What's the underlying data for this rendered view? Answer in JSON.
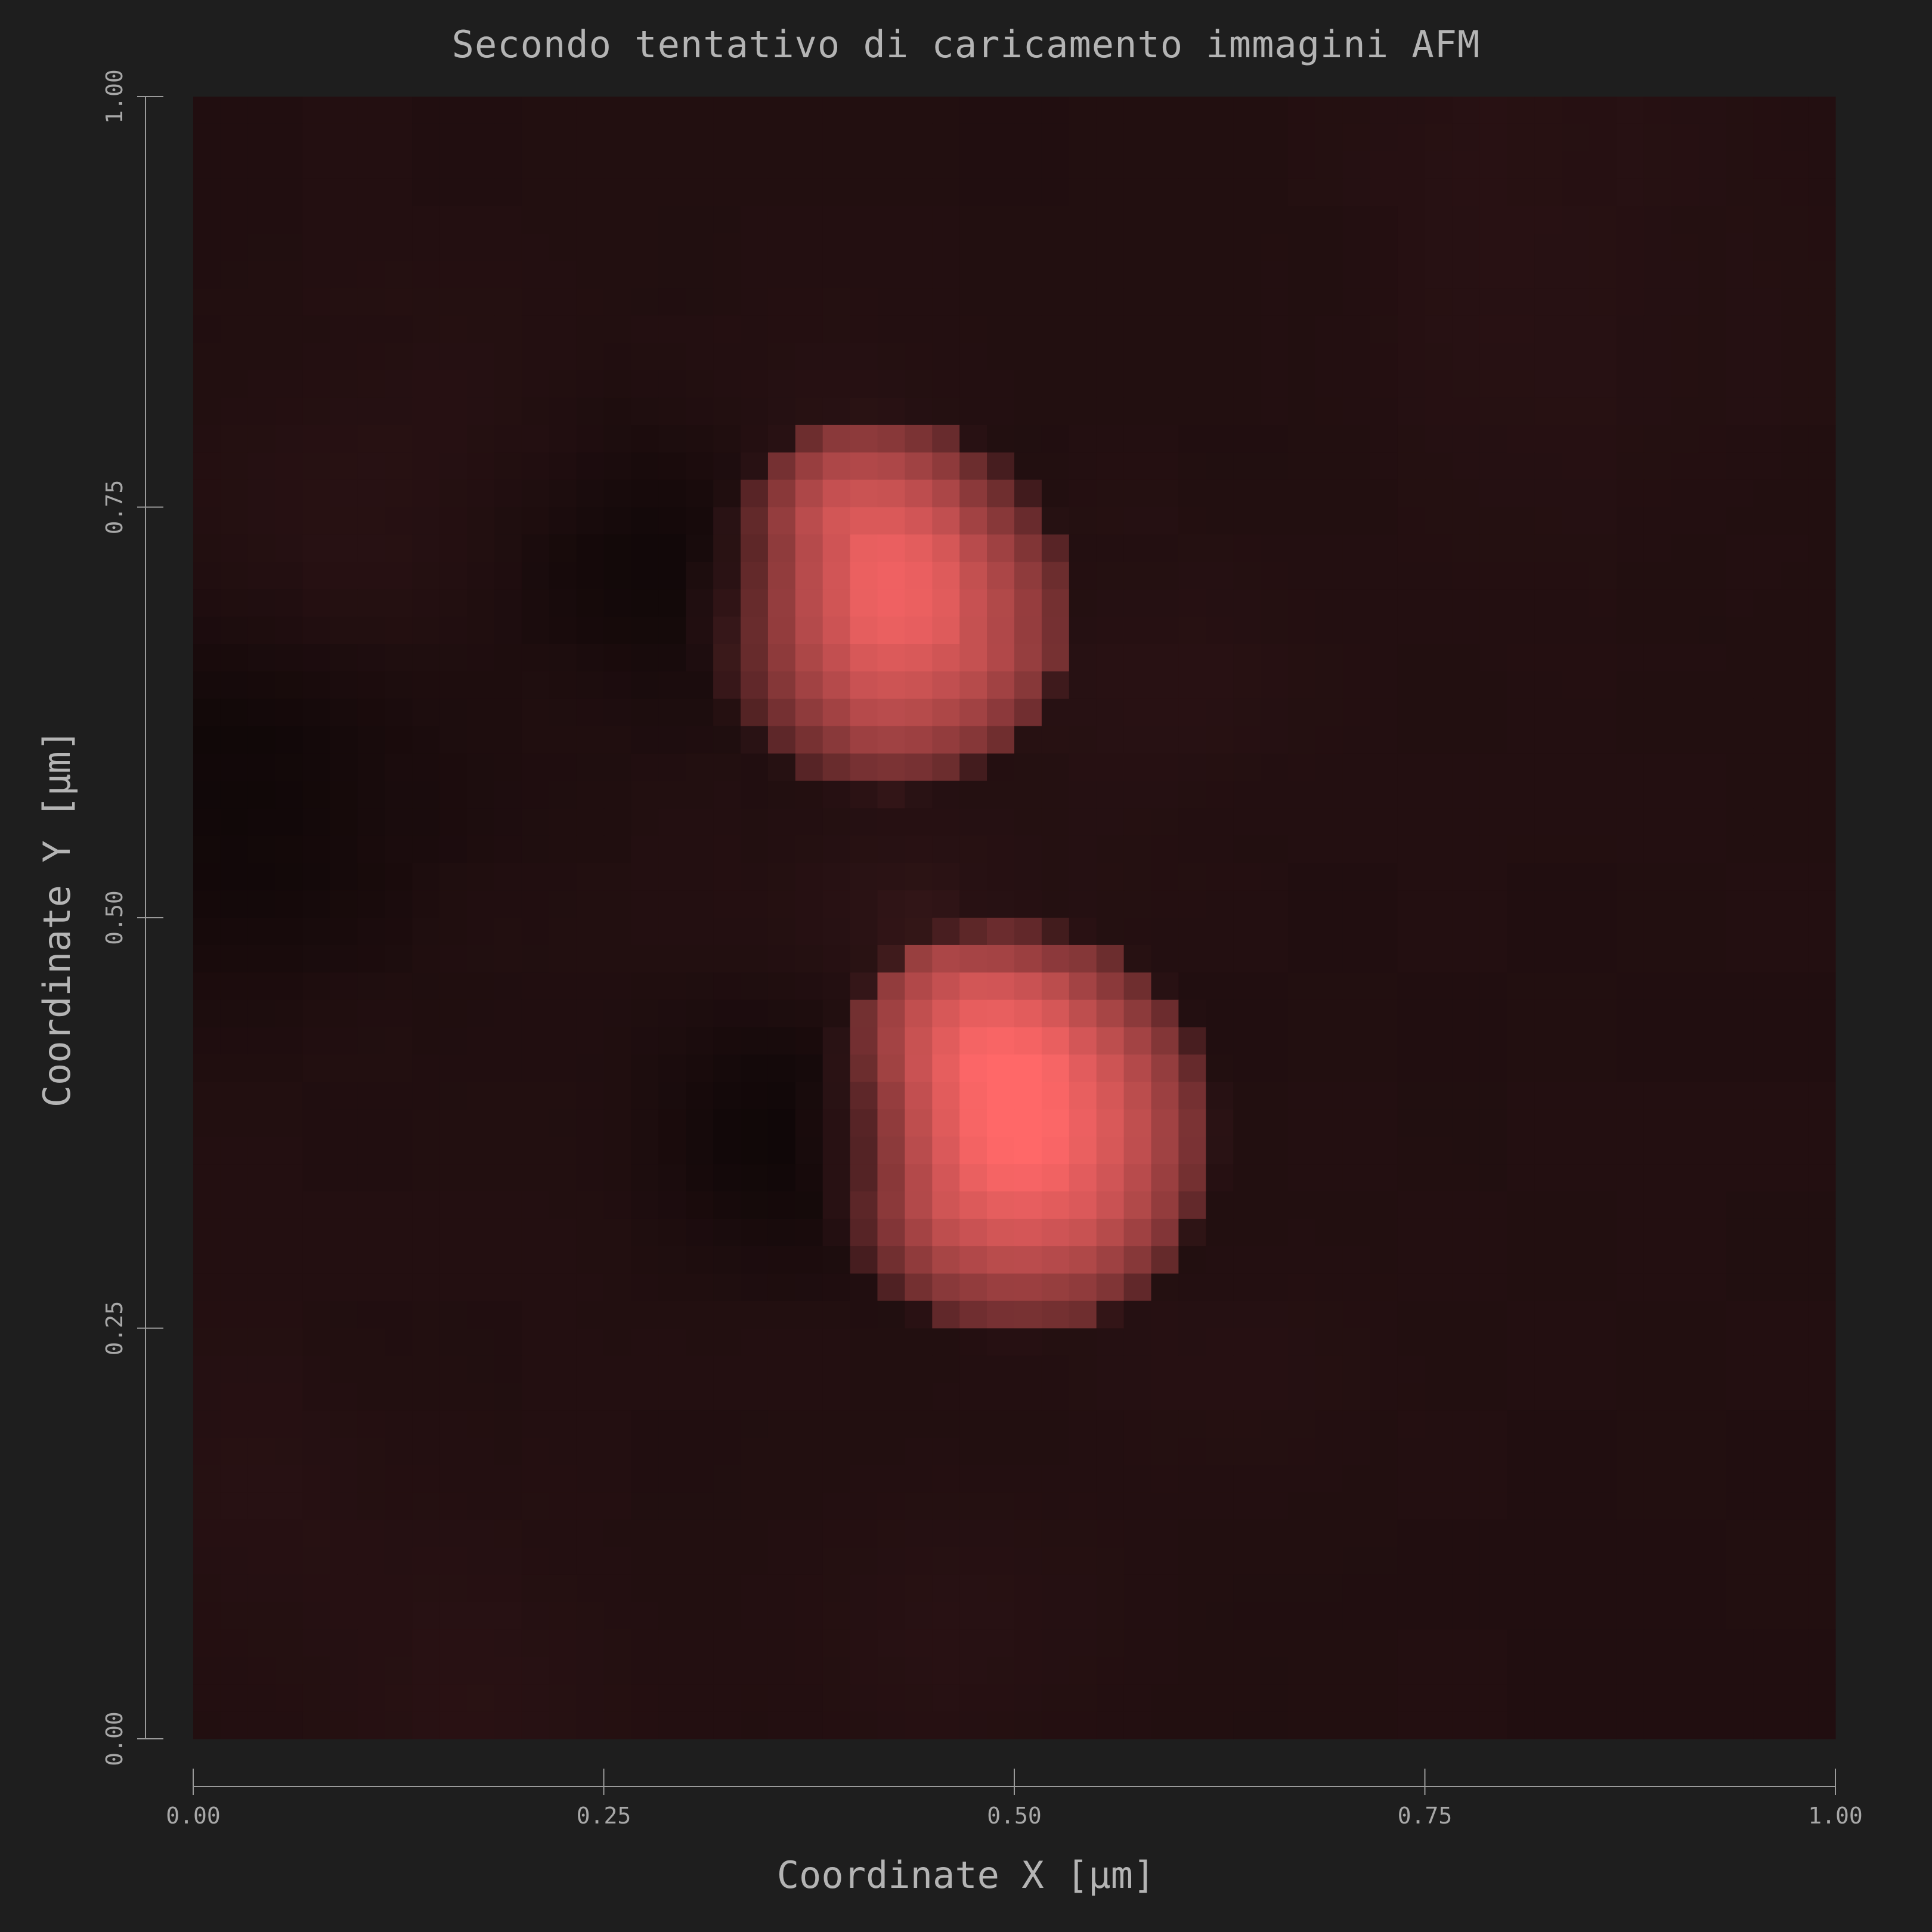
{
  "chart_data": {
    "type": "heatmap",
    "title": "Secondo tentativo di caricamento immagini AFM",
    "xlabel": "Coordinate X [µm]",
    "ylabel": "Coordinate Y [µm]",
    "xlim": [
      0.0,
      1.0
    ],
    "ylim": [
      0.0,
      1.0
    ],
    "x_ticks": [
      "0.00",
      "0.25",
      "0.50",
      "0.75",
      "1.00"
    ],
    "y_ticks": [
      "0.00",
      "0.25",
      "0.50",
      "0.75",
      "1.00"
    ],
    "x_tick_values": [
      0.0,
      0.25,
      0.5,
      0.75,
      1.0
    ],
    "y_tick_values": [
      0.0,
      0.25,
      0.5,
      0.75,
      1.0
    ],
    "grid": false,
    "colormap": {
      "low": "#0a0505",
      "mid": "#2a1214",
      "high": "#ff6868"
    },
    "features": [
      {
        "kind": "bright-particle",
        "x": 0.5,
        "y": 0.37,
        "radius": 0.12,
        "intensity": 1.0
      },
      {
        "kind": "bright-particle",
        "x": 0.42,
        "y": 0.69,
        "radius": 0.11,
        "intensity": 0.9
      },
      {
        "kind": "shadow",
        "x": 0.36,
        "y": 0.37,
        "radius": 0.05,
        "intensity": -0.6
      },
      {
        "kind": "shadow",
        "x": 0.28,
        "y": 0.72,
        "radius": 0.06,
        "intensity": -0.5
      },
      {
        "kind": "shadow",
        "x": 0.03,
        "y": 0.58,
        "radius": 0.08,
        "intensity": -0.6
      },
      {
        "kind": "halo",
        "x": 0.44,
        "y": 0.49,
        "radius": 0.06,
        "intensity": 0.28
      },
      {
        "kind": "halo",
        "x": 0.38,
        "y": 0.78,
        "radius": 0.05,
        "intensity": 0.22
      },
      {
        "kind": "bump",
        "x": 0.07,
        "y": 0.71,
        "radius": 0.07,
        "intensity": 0.22
      },
      {
        "kind": "bump",
        "x": 0.58,
        "y": 0.65,
        "radius": 0.06,
        "intensity": 0.18
      },
      {
        "kind": "bump",
        "x": 0.47,
        "y": 0.07,
        "radius": 0.06,
        "intensity": 0.2
      },
      {
        "kind": "bump",
        "x": 0.17,
        "y": 0.02,
        "radius": 0.06,
        "intensity": 0.18
      },
      {
        "kind": "bump",
        "x": 0.04,
        "y": 0.15,
        "radius": 0.06,
        "intensity": 0.16
      },
      {
        "kind": "bump",
        "x": 0.82,
        "y": 1.0,
        "radius": 0.06,
        "intensity": 0.14
      },
      {
        "kind": "bump",
        "x": 0.86,
        "y": 0.83,
        "radius": 0.09,
        "intensity": 0.12
      },
      {
        "kind": "bump",
        "x": 0.64,
        "y": 0.22,
        "radius": 0.06,
        "intensity": 0.12
      },
      {
        "kind": "bump",
        "x": 0.17,
        "y": 0.81,
        "radius": 0.06,
        "intensity": 0.12
      },
      {
        "kind": "bump",
        "x": 0.77,
        "y": 0.9,
        "radius": 0.05,
        "intensity": 0.08
      }
    ]
  }
}
